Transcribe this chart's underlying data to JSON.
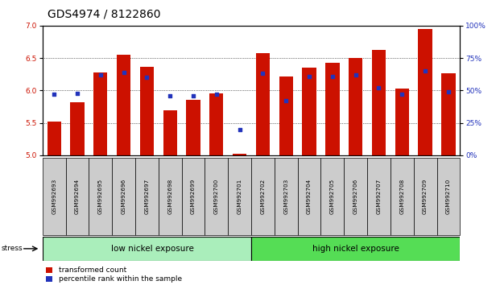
{
  "title": "GDS4974 / 8122860",
  "samples": [
    "GSM992693",
    "GSM992694",
    "GSM992695",
    "GSM992696",
    "GSM992697",
    "GSM992698",
    "GSM992699",
    "GSM992700",
    "GSM992701",
    "GSM992702",
    "GSM992703",
    "GSM992704",
    "GSM992705",
    "GSM992706",
    "GSM992707",
    "GSM992708",
    "GSM992709",
    "GSM992710"
  ],
  "red_values": [
    5.52,
    5.82,
    6.28,
    6.55,
    6.36,
    5.7,
    5.85,
    5.95,
    5.02,
    6.58,
    6.22,
    6.35,
    6.43,
    6.5,
    6.63,
    6.03,
    6.95,
    6.27
  ],
  "blue_values": [
    47,
    48,
    62,
    64,
    60,
    46,
    46,
    47,
    20,
    63,
    42,
    61,
    61,
    62,
    52,
    47,
    65,
    49
  ],
  "red_base": 5.0,
  "ylim_left": [
    5.0,
    7.0
  ],
  "ylim_right": [
    0,
    100
  ],
  "yticks_left": [
    5.0,
    5.5,
    6.0,
    6.5,
    7.0
  ],
  "yticks_right": [
    0,
    25,
    50,
    75,
    100
  ],
  "ytick_labels_right": [
    "0%",
    "25%",
    "50%",
    "75%",
    "100%"
  ],
  "group1_label": "low nickel exposure",
  "group1_count": 9,
  "group2_label": "high nickel exposure",
  "group2_count": 9,
  "stress_label": "stress",
  "legend_red": "transformed count",
  "legend_blue": "percentile rank within the sample",
  "bar_color": "#cc1100",
  "dot_color": "#2233bb",
  "group1_color": "#aaeebb",
  "group2_color": "#55dd55",
  "sample_box_color": "#cccccc",
  "bg_color": "#ffffff",
  "plot_bg": "#ffffff",
  "title_fontsize": 10,
  "tick_fontsize": 6.5,
  "label_fontsize": 8
}
